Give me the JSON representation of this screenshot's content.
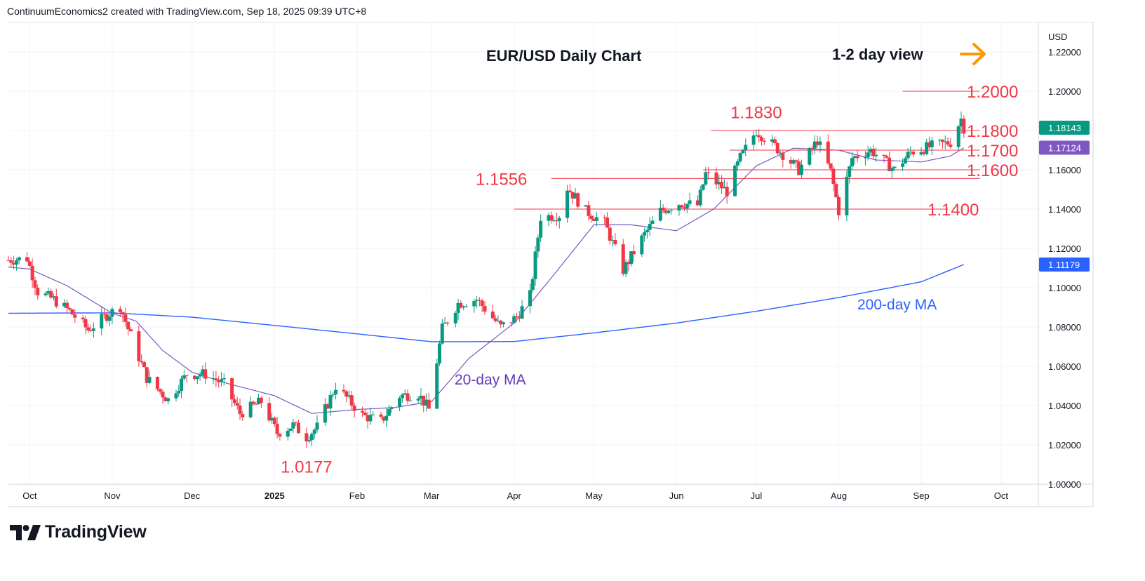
{
  "attribution": "ContinuumEconomics2 created with TradingView.com, Sep 18, 2025 09:39 UTC+8",
  "logo": {
    "text": "TradingView",
    "icon": "tradingview-logo-icon"
  },
  "colors": {
    "up": "#089981",
    "down": "#f23645",
    "ma20": "#7e57c2",
    "ma200": "#2962ff",
    "ma200_label": "#2962ff",
    "ma20_label": "#673ab7",
    "level_line": "#f23645",
    "arrow": "#ff9800",
    "price_badge": "#089981",
    "ma20_badge": "#7e57c2",
    "ma200_badge": "#2962ff"
  },
  "chart_data": {
    "type": "candlestick",
    "title": "EUR/USD Daily Chart",
    "view_label": "1-2 day view",
    "view_arrow_icon": "right-arrow-icon",
    "currency": "USD",
    "ylim": [
      1.0,
      1.235
    ],
    "y_ticks": [
      "1.22000",
      "1.20000",
      "1.18000",
      "1.16000",
      "1.14000",
      "1.12000",
      "1.10000",
      "1.08000",
      "1.06000",
      "1.04000",
      "1.02000",
      "1.00000"
    ],
    "y_tick_values": [
      1.22,
      1.2,
      1.18,
      1.16,
      1.14,
      1.12,
      1.1,
      1.08,
      1.06,
      1.04,
      1.02,
      1.0
    ],
    "x_start": "2024-09-23",
    "x_end": "2025-10-15",
    "x_ticks": [
      {
        "label": "Oct",
        "date": "2024-10-01",
        "bold": false
      },
      {
        "label": "Nov",
        "date": "2024-11-01",
        "bold": false
      },
      {
        "label": "Dec",
        "date": "2024-12-01",
        "bold": false
      },
      {
        "label": "2025",
        "date": "2025-01-01",
        "bold": true
      },
      {
        "label": "Feb",
        "date": "2025-02-01",
        "bold": false
      },
      {
        "label": "Mar",
        "date": "2025-03-01",
        "bold": false
      },
      {
        "label": "Apr",
        "date": "2025-04-01",
        "bold": false
      },
      {
        "label": "May",
        "date": "2025-05-01",
        "bold": false
      },
      {
        "label": "Jun",
        "date": "2025-06-01",
        "bold": false
      },
      {
        "label": "Jul",
        "date": "2025-07-01",
        "bold": false
      },
      {
        "label": "Aug",
        "date": "2025-08-01",
        "bold": false
      },
      {
        "label": "Sep",
        "date": "2025-09-01",
        "bold": false
      },
      {
        "label": "Oct",
        "date": "2025-10-01",
        "bold": false
      }
    ],
    "close_anchors": [
      [
        "2024-09-23",
        1.114
      ],
      [
        "2024-09-30",
        1.115
      ],
      [
        "2024-10-04",
        1.098
      ],
      [
        "2024-10-10",
        1.094
      ],
      [
        "2024-10-16",
        1.088
      ],
      [
        "2024-10-23",
        1.0785
      ],
      [
        "2024-10-30",
        1.086
      ],
      [
        "2024-11-04",
        1.0905
      ],
      [
        "2024-11-07",
        1.079
      ],
      [
        "2024-11-14",
        1.054
      ],
      [
        "2024-11-22",
        1.043
      ],
      [
        "2024-11-29",
        1.056
      ],
      [
        "2024-12-06",
        1.056
      ],
      [
        "2024-12-13",
        1.051
      ],
      [
        "2024-12-19",
        1.036
      ],
      [
        "2024-12-27",
        1.042
      ],
      [
        "2025-01-02",
        1.026
      ],
      [
        "2025-01-08",
        1.03
      ],
      [
        "2025-01-13",
        1.024
      ],
      [
        "2025-01-17",
        1.029
      ],
      [
        "2025-01-24",
        1.05
      ],
      [
        "2025-02-03",
        1.035
      ],
      [
        "2025-02-10",
        1.032
      ],
      [
        "2025-02-17",
        1.045
      ],
      [
        "2025-02-24",
        1.046
      ],
      [
        "2025-02-28",
        1.038
      ],
      [
        "2025-03-05",
        1.079
      ],
      [
        "2025-03-11",
        1.092
      ],
      [
        "2025-03-18",
        1.094
      ],
      [
        "2025-03-27",
        1.08
      ],
      [
        "2025-04-02",
        1.085
      ],
      [
        "2025-04-07",
        1.096
      ],
      [
        "2025-04-11",
        1.136
      ],
      [
        "2025-04-18",
        1.137
      ],
      [
        "2025-04-21",
        1.151
      ],
      [
        "2025-04-28",
        1.139
      ],
      [
        "2025-05-05",
        1.133
      ],
      [
        "2025-05-12",
        1.109
      ],
      [
        "2025-05-19",
        1.125
      ],
      [
        "2025-05-26",
        1.139
      ],
      [
        "2025-06-02",
        1.143
      ],
      [
        "2025-06-09",
        1.142
      ],
      [
        "2025-06-12",
        1.158
      ],
      [
        "2025-06-20",
        1.149
      ],
      [
        "2025-06-25",
        1.166
      ],
      [
        "2025-07-01",
        1.18
      ],
      [
        "2025-07-08",
        1.172
      ],
      [
        "2025-07-17",
        1.16
      ],
      [
        "2025-07-24",
        1.175
      ],
      [
        "2025-07-29",
        1.159
      ],
      [
        "2025-08-01",
        1.139
      ],
      [
        "2025-08-06",
        1.166
      ],
      [
        "2025-08-13",
        1.17
      ],
      [
        "2025-08-22",
        1.16
      ],
      [
        "2025-08-28",
        1.169
      ],
      [
        "2025-09-05",
        1.172
      ],
      [
        "2025-09-12",
        1.174
      ],
      [
        "2025-09-16",
        1.186
      ],
      [
        "2025-09-17",
        1.1814
      ]
    ],
    "ma20_anchors": [
      [
        "2024-09-23",
        1.1105
      ],
      [
        "2024-10-01",
        1.1095
      ],
      [
        "2024-10-15",
        1.101
      ],
      [
        "2024-11-01",
        1.087
      ],
      [
        "2024-11-10",
        1.083
      ],
      [
        "2024-11-20",
        1.068
      ],
      [
        "2024-12-01",
        1.057
      ],
      [
        "2024-12-15",
        1.051
      ],
      [
        "2025-01-01",
        1.045
      ],
      [
        "2025-01-15",
        1.036
      ],
      [
        "2025-02-01",
        1.038
      ],
      [
        "2025-02-15",
        1.039
      ],
      [
        "2025-03-01",
        1.042
      ],
      [
        "2025-03-15",
        1.064
      ],
      [
        "2025-04-01",
        1.082
      ],
      [
        "2025-04-15",
        1.105
      ],
      [
        "2025-05-01",
        1.132
      ],
      [
        "2025-05-15",
        1.132
      ],
      [
        "2025-06-01",
        1.129
      ],
      [
        "2025-06-15",
        1.14
      ],
      [
        "2025-07-01",
        1.162
      ],
      [
        "2025-07-15",
        1.171
      ],
      [
        "2025-08-01",
        1.17
      ],
      [
        "2025-08-15",
        1.165
      ],
      [
        "2025-09-01",
        1.164
      ],
      [
        "2025-09-12",
        1.167
      ],
      [
        "2025-09-17",
        1.1712
      ]
    ],
    "ma200_anchors": [
      [
        "2024-09-23",
        1.087
      ],
      [
        "2024-11-01",
        1.0872
      ],
      [
        "2024-12-01",
        1.085
      ],
      [
        "2025-01-01",
        1.0808
      ],
      [
        "2025-02-01",
        1.0765
      ],
      [
        "2025-03-01",
        1.0725
      ],
      [
        "2025-04-01",
        1.0726
      ],
      [
        "2025-05-01",
        1.077
      ],
      [
        "2025-06-01",
        1.082
      ],
      [
        "2025-07-01",
        1.088
      ],
      [
        "2025-08-01",
        1.095
      ],
      [
        "2025-09-01",
        1.103
      ],
      [
        "2025-09-17",
        1.1118
      ]
    ],
    "levels": [
      {
        "label": "1.2000",
        "value": 1.2,
        "from": "2025-08-25",
        "to": "2025-09-23"
      },
      {
        "label": "1.1800",
        "value": 1.18,
        "from": "2025-06-14",
        "to": "2025-09-23"
      },
      {
        "label": "1.1700",
        "value": 1.17,
        "from": "2025-06-21",
        "to": "2025-09-23"
      },
      {
        "label": "1.1600",
        "value": 1.16,
        "from": "2025-06-11",
        "to": "2025-09-23"
      },
      {
        "label": "1.1556",
        "value": 1.1556,
        "from": "2025-04-15",
        "to": "2025-09-23"
      },
      {
        "label": "1.1400",
        "value": 1.14,
        "from": "2025-04-01",
        "to": "2025-09-11"
      }
    ],
    "annotations": [
      {
        "text": "1.0177",
        "date": "2025-01-13",
        "value": 1.0177
      },
      {
        "text": "1.1830",
        "date": "2025-07-01",
        "value": 1.183
      }
    ],
    "ma_labels": {
      "ma20": "20-day MA",
      "ma200": "200-day MA"
    },
    "price_badges": [
      {
        "label": "1.18143",
        "value": 1.18143,
        "kind": "price"
      },
      {
        "label": "1.17124",
        "value": 1.17124,
        "kind": "ma20"
      },
      {
        "label": "1.11179",
        "value": 1.11179,
        "kind": "ma200"
      }
    ]
  }
}
